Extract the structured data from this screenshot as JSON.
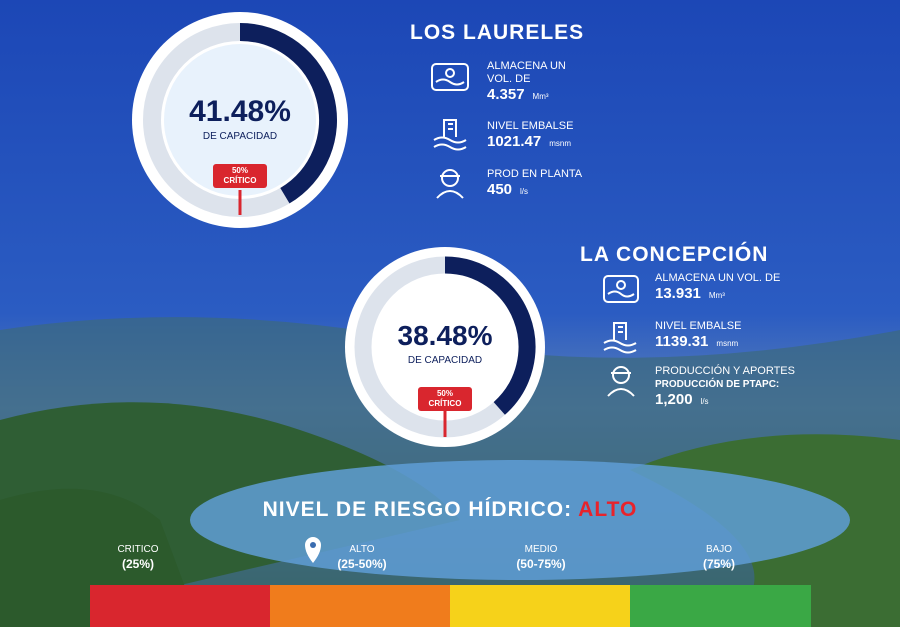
{
  "los_laureles": {
    "title": "LOS LAURELES",
    "gauge": {
      "value": 41.48,
      "label": "41.48%"
    },
    "gauge_caption": "DE CAPACIDAD",
    "marker": [
      "50%",
      "CRÍTICO"
    ],
    "stats": [
      {
        "label": [
          "ALMACENA UN",
          "VOL. DE"
        ],
        "value": "4.357",
        "unit": "Mm³"
      },
      {
        "label": [
          "NIVEL EMBALSE"
        ],
        "value": "1021.47",
        "unit": "msnm"
      },
      {
        "label": [
          "PROD EN PLANTA"
        ],
        "value": "450",
        "unit": "l/s"
      }
    ]
  },
  "la_concepcion": {
    "title": "LA CONCEPCIÓN",
    "gauge": {
      "value": 38.48,
      "label": "38.48%"
    },
    "gauge_caption": "DE CAPACIDAD",
    "marker": [
      "50%",
      "CRÍTICO"
    ],
    "stats": [
      {
        "label": [
          "ALMACENA UN VOL. DE"
        ],
        "value": "13.931",
        "unit": "Mm³"
      },
      {
        "label": [
          "NIVEL EMBALSE"
        ],
        "value": "1139.31",
        "unit": "msnm"
      },
      {
        "label": [
          "PRODUCCIÓN Y APORTES",
          "PRODUCCIÓN DE PTAPC:"
        ],
        "value": "1,200",
        "unit": "l/s"
      }
    ]
  },
  "risk": {
    "title": "NIVEL DE RIESGO HÍDRICO:",
    "level": "ALTO",
    "levels": [
      {
        "name": "CRITICO",
        "range": "(25%)",
        "color": "#d9262e"
      },
      {
        "name": "ALTO",
        "range": "(25-50%)",
        "color": "#f07c1c"
      },
      {
        "name": "MEDIO",
        "range": "(50-75%)",
        "color": "#f6d21a"
      },
      {
        "name": "BAJO",
        "range": "(75%)",
        "color": "#3aa845"
      }
    ]
  }
}
